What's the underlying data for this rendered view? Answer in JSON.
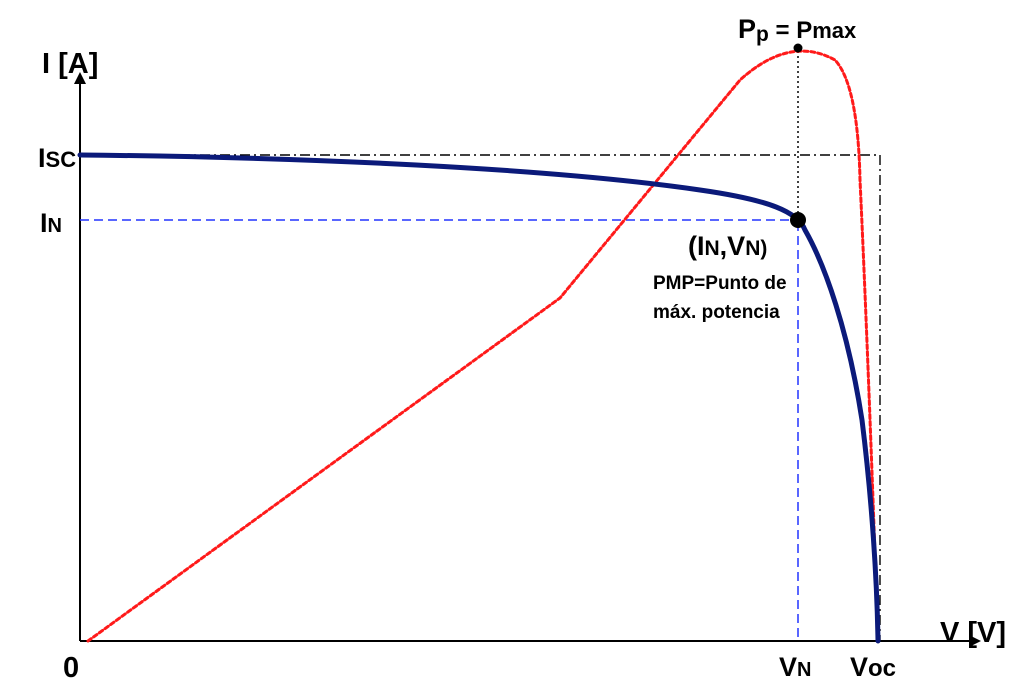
{
  "labels": {
    "y_axis": "I [A]",
    "x_axis": "V [V]",
    "origin": "0",
    "isc_main": "I",
    "isc_sub": "SC",
    "in_main": "I",
    "in_sub": "N",
    "vn_main": "V",
    "vn_sub": "N",
    "voc_main": "V",
    "voc_sub": "oc",
    "pp_main": "P",
    "pp_sub": "p",
    "pp_eq": " = P",
    "pp_max": "max",
    "point_open": "(I",
    "point_sub1": "N",
    "point_mid": ",V",
    "point_sub2": "N",
    "point_close": ")",
    "pmp_line1": "PMP=Punto de",
    "pmp_line2": "máx. potencia"
  },
  "colors": {
    "iv_curve": "#0b1a7a",
    "power_curve": "#ff1a1a",
    "guide_blue": "#2233ff",
    "guide_black": "#000000"
  }
}
